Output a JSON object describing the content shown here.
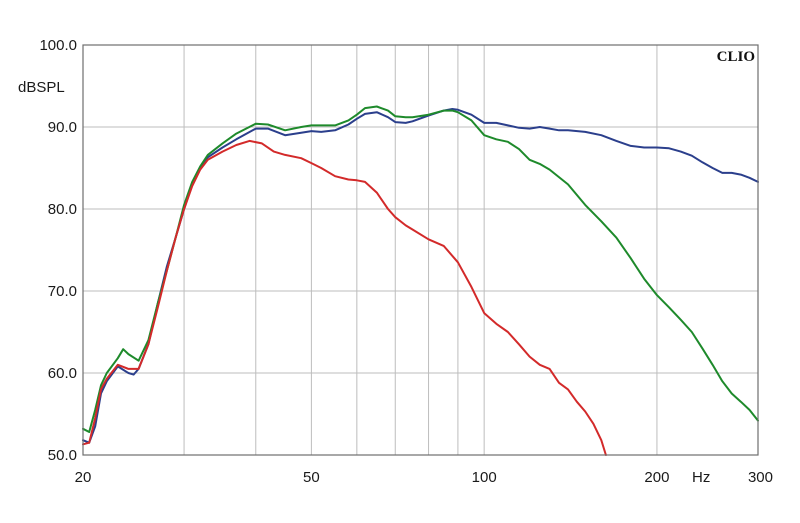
{
  "chart_data": {
    "type": "line",
    "brand": "CLIO",
    "ylabel": "dBSPL",
    "xunit": "Hz",
    "xscale": "log",
    "xlim": [
      20,
      300
    ],
    "ylim": [
      50,
      100
    ],
    "grid": true,
    "x_tick_labels": [
      {
        "value": 20,
        "label": "20"
      },
      {
        "value": 50,
        "label": "50"
      },
      {
        "value": 100,
        "label": "100"
      },
      {
        "value": 200,
        "label": "200"
      },
      {
        "value": 300,
        "label": "300"
      }
    ],
    "y_tick_labels": [
      {
        "value": 100,
        "label": "100.0"
      },
      {
        "value": 90,
        "label": "90.0"
      },
      {
        "value": 80,
        "label": "80.0"
      },
      {
        "value": 70,
        "label": "70.0"
      },
      {
        "value": 60,
        "label": "60.0"
      },
      {
        "value": 50,
        "label": "50.0"
      }
    ],
    "x_grid": [
      30,
      40,
      50,
      60,
      70,
      80,
      90,
      100,
      200
    ],
    "y_grid": [
      60,
      70,
      80,
      90
    ],
    "series": [
      {
        "color": "#2b3f8c",
        "points": [
          [
            20,
            51.8
          ],
          [
            20.5,
            51.5
          ],
          [
            21,
            53.5
          ],
          [
            21.5,
            57.5
          ],
          [
            22,
            59
          ],
          [
            23,
            60.8
          ],
          [
            24,
            60
          ],
          [
            24.5,
            59.8
          ],
          [
            25,
            60.5
          ],
          [
            26,
            63.5
          ],
          [
            27,
            68.5
          ],
          [
            28,
            73
          ],
          [
            29,
            76.5
          ],
          [
            30,
            80
          ],
          [
            31,
            83
          ],
          [
            32,
            85
          ],
          [
            33,
            86.3
          ],
          [
            35,
            87.5
          ],
          [
            37,
            88.5
          ],
          [
            40,
            89.8
          ],
          [
            42,
            89.8
          ],
          [
            45,
            89
          ],
          [
            48,
            89.3
          ],
          [
            50,
            89.5
          ],
          [
            52,
            89.4
          ],
          [
            55,
            89.6
          ],
          [
            58,
            90.3
          ],
          [
            60,
            91
          ],
          [
            62,
            91.6
          ],
          [
            65,
            91.8
          ],
          [
            68,
            91.2
          ],
          [
            70,
            90.6
          ],
          [
            73,
            90.5
          ],
          [
            75,
            90.7
          ],
          [
            80,
            91.4
          ],
          [
            85,
            92
          ],
          [
            88,
            92.2
          ],
          [
            90,
            92.1
          ],
          [
            95,
            91.5
          ],
          [
            100,
            90.5
          ],
          [
            105,
            90.5
          ],
          [
            110,
            90.2
          ],
          [
            115,
            89.9
          ],
          [
            120,
            89.8
          ],
          [
            125,
            90
          ],
          [
            130,
            89.8
          ],
          [
            135,
            89.6
          ],
          [
            140,
            89.6
          ],
          [
            150,
            89.4
          ],
          [
            160,
            89
          ],
          [
            170,
            88.3
          ],
          [
            180,
            87.7
          ],
          [
            190,
            87.5
          ],
          [
            200,
            87.5
          ],
          [
            210,
            87.4
          ],
          [
            220,
            87
          ],
          [
            230,
            86.5
          ],
          [
            240,
            85.7
          ],
          [
            250,
            85
          ],
          [
            260,
            84.4
          ],
          [
            270,
            84.4
          ],
          [
            280,
            84.2
          ],
          [
            290,
            83.8
          ],
          [
            300,
            83.3
          ]
        ]
      },
      {
        "color": "#1e8a2b",
        "points": [
          [
            20,
            53.2
          ],
          [
            20.5,
            52.8
          ],
          [
            21,
            55.5
          ],
          [
            21.5,
            58.5
          ],
          [
            22,
            60
          ],
          [
            23,
            61.8
          ],
          [
            23.5,
            62.9
          ],
          [
            24,
            62.3
          ],
          [
            25,
            61.5
          ],
          [
            26,
            64
          ],
          [
            27,
            68.5
          ],
          [
            28,
            72.5
          ],
          [
            29,
            76.5
          ],
          [
            30,
            80.5
          ],
          [
            31,
            83.3
          ],
          [
            32,
            85.2
          ],
          [
            33,
            86.6
          ],
          [
            35,
            88
          ],
          [
            37,
            89.2
          ],
          [
            40,
            90.4
          ],
          [
            42,
            90.3
          ],
          [
            45,
            89.6
          ],
          [
            48,
            90
          ],
          [
            50,
            90.2
          ],
          [
            52,
            90.2
          ],
          [
            55,
            90.2
          ],
          [
            58,
            90.8
          ],
          [
            60,
            91.5
          ],
          [
            62,
            92.3
          ],
          [
            65,
            92.5
          ],
          [
            68,
            92
          ],
          [
            70,
            91.3
          ],
          [
            73,
            91.2
          ],
          [
            75,
            91.2
          ],
          [
            80,
            91.5
          ],
          [
            85,
            92
          ],
          [
            88,
            92
          ],
          [
            90,
            91.8
          ],
          [
            95,
            90.8
          ],
          [
            100,
            89
          ],
          [
            105,
            88.5
          ],
          [
            110,
            88.2
          ],
          [
            115,
            87.3
          ],
          [
            120,
            86
          ],
          [
            125,
            85.5
          ],
          [
            130,
            84.8
          ],
          [
            140,
            83
          ],
          [
            150,
            80.5
          ],
          [
            160,
            78.5
          ],
          [
            170,
            76.5
          ],
          [
            180,
            74
          ],
          [
            190,
            71.5
          ],
          [
            200,
            69.5
          ],
          [
            210,
            68
          ],
          [
            220,
            66.5
          ],
          [
            230,
            65
          ],
          [
            240,
            63
          ],
          [
            250,
            61
          ],
          [
            260,
            59
          ],
          [
            270,
            57.5
          ],
          [
            280,
            56.5
          ],
          [
            290,
            55.5
          ],
          [
            300,
            54.2
          ]
        ]
      },
      {
        "color": "#d32a2a",
        "points": [
          [
            20,
            51.3
          ],
          [
            20.5,
            51.5
          ],
          [
            21,
            54.5
          ],
          [
            21.5,
            58
          ],
          [
            22,
            59.3
          ],
          [
            23,
            61
          ],
          [
            24,
            60.5
          ],
          [
            25,
            60.5
          ],
          [
            26,
            63.5
          ],
          [
            27,
            68
          ],
          [
            28,
            72.5
          ],
          [
            29,
            76.5
          ],
          [
            30,
            80
          ],
          [
            31,
            82.8
          ],
          [
            32,
            84.8
          ],
          [
            33,
            86
          ],
          [
            35,
            87
          ],
          [
            37,
            87.8
          ],
          [
            39,
            88.3
          ],
          [
            41,
            88
          ],
          [
            43,
            87
          ],
          [
            45,
            86.6
          ],
          [
            48,
            86.2
          ],
          [
            50,
            85.6
          ],
          [
            52,
            85
          ],
          [
            55,
            84
          ],
          [
            58,
            83.6
          ],
          [
            60,
            83.5
          ],
          [
            62,
            83.3
          ],
          [
            65,
            82
          ],
          [
            68,
            80
          ],
          [
            70,
            79
          ],
          [
            73,
            78
          ],
          [
            75,
            77.5
          ],
          [
            80,
            76.3
          ],
          [
            85,
            75.5
          ],
          [
            90,
            73.5
          ],
          [
            95,
            70.5
          ],
          [
            100,
            67.3
          ],
          [
            105,
            66
          ],
          [
            110,
            65
          ],
          [
            115,
            63.5
          ],
          [
            120,
            62
          ],
          [
            125,
            61
          ],
          [
            130,
            60.5
          ],
          [
            135,
            58.8
          ],
          [
            140,
            58
          ],
          [
            145,
            56.5
          ],
          [
            150,
            55.3
          ],
          [
            155,
            53.8
          ],
          [
            160,
            51.8
          ],
          [
            163,
            50
          ]
        ]
      }
    ]
  }
}
